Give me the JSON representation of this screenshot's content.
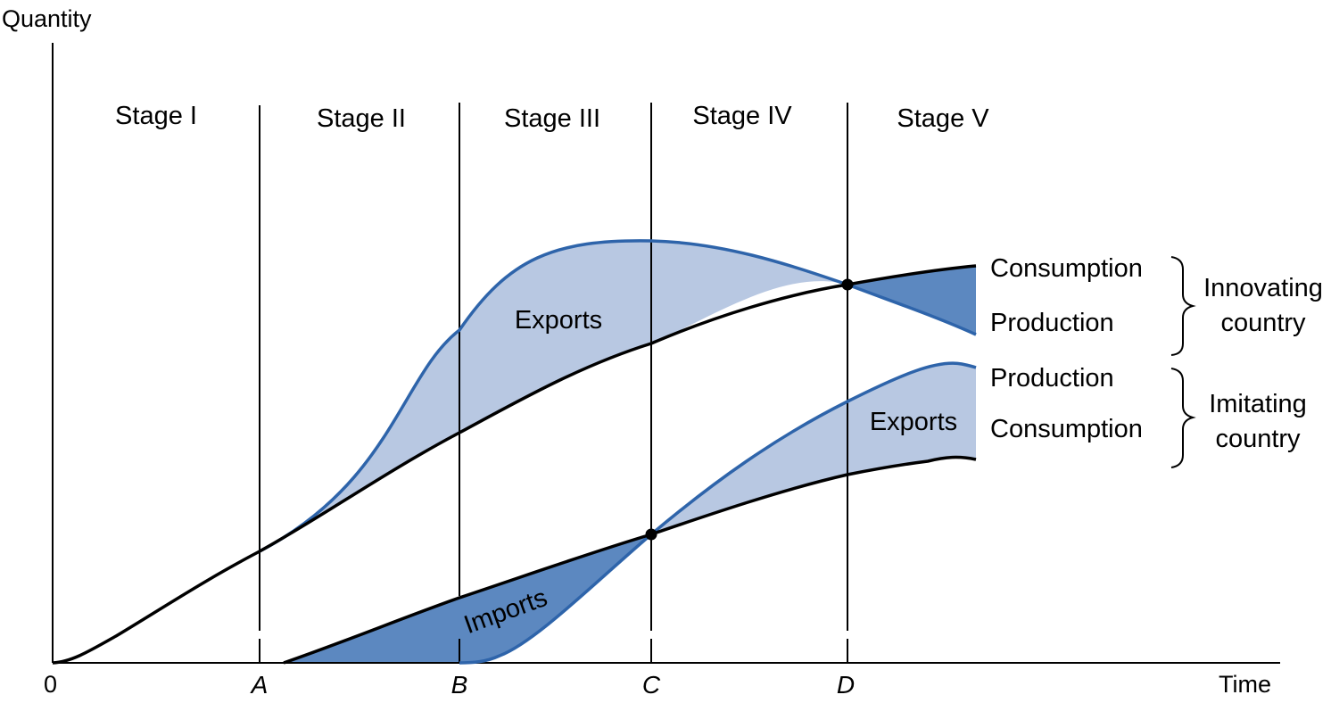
{
  "axes": {
    "y_label": "Quantity",
    "x_label": "Time",
    "origin_label": "0"
  },
  "stages": [
    "Stage I",
    "Stage II",
    "Stage III",
    "Stage IV",
    "Stage V"
  ],
  "time_points": [
    "A",
    "B",
    "C",
    "D"
  ],
  "regions": {
    "exports_innovating": "Exports",
    "exports_imitating": "Exports",
    "imports_imitating": "Imports"
  },
  "innovating": {
    "consumption": "Consumption",
    "production": "Production",
    "group_line1": "Innovating",
    "group_line2": "country"
  },
  "imitating": {
    "production": "Production",
    "consumption": "Consumption",
    "group_line1": "Imitating",
    "group_line2": "country"
  },
  "colors": {
    "light_fill": "#b8c8e2",
    "dark_fill": "#5c88c0",
    "blue_line": "#2e64aa",
    "black_line": "#000000"
  }
}
